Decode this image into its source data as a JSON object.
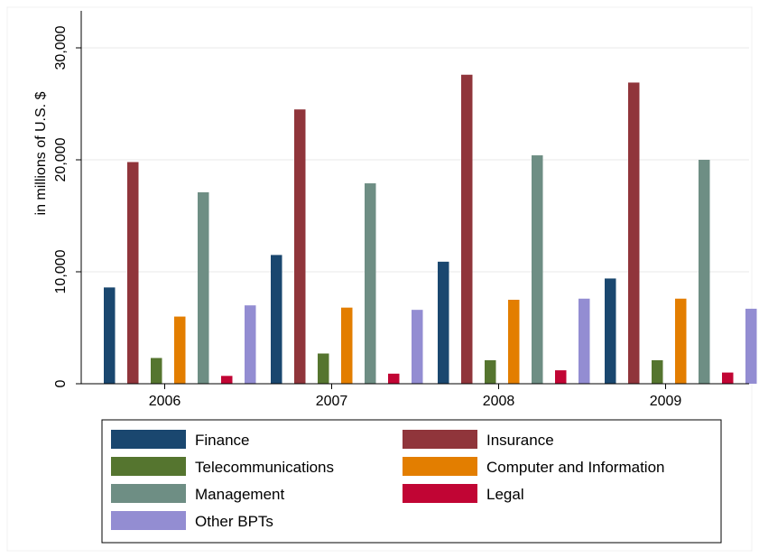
{
  "chart_data": {
    "type": "bar",
    "ylabel": "in millions of U.S. $",
    "ylim": [
      0,
      30000
    ],
    "yticks": [
      0,
      10000,
      20000,
      30000
    ],
    "ytick_labels": [
      "0",
      "10,000",
      "20,000",
      "30,000"
    ],
    "grid": true,
    "legend_position": "bottom",
    "categories": [
      "2006",
      "2007",
      "2008",
      "2009"
    ],
    "series": [
      {
        "name": "Finance",
        "color": "#1a476f",
        "values": [
          8600,
          11500,
          10900,
          9400
        ]
      },
      {
        "name": "Insurance",
        "color": "#90353b",
        "values": [
          19800,
          24500,
          27600,
          26900
        ]
      },
      {
        "name": "Telecommunications",
        "color": "#55752f",
        "values": [
          2300,
          2700,
          2100,
          2100
        ]
      },
      {
        "name": "Computer and Information",
        "color": "#e37e00",
        "values": [
          6000,
          6800,
          7500,
          7600
        ]
      },
      {
        "name": "Management",
        "color": "#6e8e84",
        "values": [
          17100,
          17900,
          20400,
          20000
        ]
      },
      {
        "name": "Legal",
        "color": "#c10534",
        "values": [
          700,
          900,
          1200,
          1000
        ]
      },
      {
        "name": "Other BPTs",
        "color": "#938dd2",
        "values": [
          7000,
          6600,
          7600,
          6700
        ]
      }
    ]
  }
}
